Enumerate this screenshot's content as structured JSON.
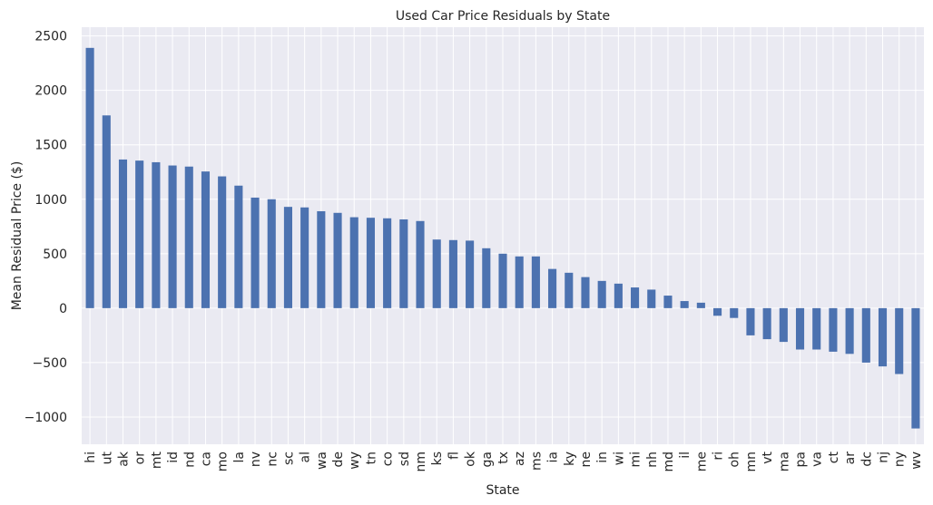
{
  "chart_data": {
    "type": "bar",
    "title": "Used Car Price Residuals by State",
    "xlabel": "State",
    "ylabel": "Mean Residual Price ($)",
    "ylim": [
      -1250,
      2580
    ],
    "yticks": [
      -1000,
      -500,
      0,
      500,
      1000,
      1500,
      2000,
      2500
    ],
    "grid": true,
    "legend": "none",
    "colors": {
      "bar": "#4c72b0",
      "background": "#eaeaf2",
      "grid": "#ffffff"
    },
    "categories": [
      "hi",
      "ut",
      "ak",
      "or",
      "mt",
      "id",
      "nd",
      "ca",
      "mo",
      "la",
      "nv",
      "nc",
      "sc",
      "al",
      "wa",
      "de",
      "wy",
      "tn",
      "co",
      "sd",
      "nm",
      "ks",
      "fl",
      "ok",
      "ga",
      "tx",
      "az",
      "ms",
      "ia",
      "ky",
      "ne",
      "in",
      "wi",
      "mi",
      "nh",
      "md",
      "il",
      "me",
      "ri",
      "oh",
      "mn",
      "vt",
      "ma",
      "pa",
      "va",
      "ct",
      "ar",
      "dc",
      "nj",
      "ny",
      "wv"
    ],
    "values": [
      2390,
      1770,
      1365,
      1355,
      1340,
      1310,
      1300,
      1255,
      1210,
      1125,
      1015,
      1000,
      930,
      925,
      890,
      875,
      835,
      830,
      825,
      815,
      800,
      630,
      625,
      620,
      550,
      500,
      475,
      475,
      360,
      325,
      285,
      250,
      225,
      190,
      170,
      115,
      65,
      50,
      -70,
      -90,
      -250,
      -285,
      -310,
      -380,
      -380,
      -400,
      -420,
      -500,
      -535,
      -605,
      -1105
    ]
  }
}
